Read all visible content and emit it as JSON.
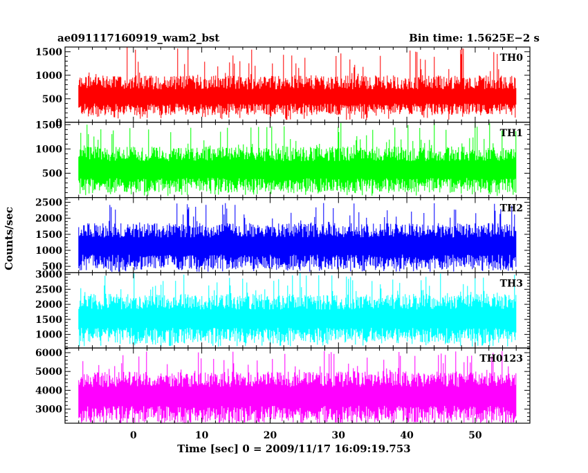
{
  "header": {
    "left_title": "ae091117160919_wam2_bst",
    "right_title": "Bin time: 1.5625E−2 s"
  },
  "axes": {
    "xlabel": "Time [sec] 0 = 2009/11/17 16:09:19.753",
    "ylabel": "Counts/sec"
  },
  "chart_data": {
    "type": "line",
    "x_range": [
      -8,
      56
    ],
    "xlim": [
      -10,
      58
    ],
    "x_ticks": [
      0,
      10,
      20,
      30,
      40,
      50
    ],
    "bin_time_s": 0.015625,
    "grid": false,
    "panels": [
      {
        "name": "TH0",
        "color": "#ff0000",
        "ylim": [
          0,
          1600
        ],
        "y_ticks": [
          500,
          1000,
          1500
        ],
        "y_tick_labels": [
          "500",
          "1000",
          "1500"
        ],
        "bottom_tick_label": "0",
        "trace": {
          "mean": 600,
          "low": 150,
          "high": 1600,
          "spread": 400
        }
      },
      {
        "name": "TH1",
        "color": "#00ff00",
        "ylim": [
          0,
          1550
        ],
        "y_ticks": [
          500,
          1000,
          1500
        ],
        "y_tick_labels": [
          "500",
          "1000",
          "1500"
        ],
        "trace": {
          "mean": 650,
          "low": 100,
          "high": 1550,
          "spread": 400
        }
      },
      {
        "name": "TH2",
        "color": "#0000ff",
        "ylim": [
          300,
          2650
        ],
        "y_ticks": [
          500,
          1000,
          1500,
          2000,
          2500
        ],
        "y_tick_labels": [
          "500",
          "1000",
          "1500",
          "2000",
          "2500"
        ],
        "trace": {
          "mean": 1250,
          "low": 400,
          "high": 2500,
          "spread": 600
        }
      },
      {
        "name": "TH3",
        "color": "#00ffff",
        "ylim": [
          550,
          3050
        ],
        "y_ticks": [
          1000,
          1500,
          2000,
          2500,
          3000
        ],
        "y_tick_labels": [
          "1000",
          "1500",
          "2000",
          "2500",
          "3000"
        ],
        "trace": {
          "mean": 1650,
          "low": 700,
          "high": 3050,
          "spread": 700
        }
      },
      {
        "name": "TH0123",
        "color": "#ff00ff",
        "ylim": [
          2250,
          6250
        ],
        "y_ticks": [
          3000,
          4000,
          5000,
          6000
        ],
        "y_tick_labels": [
          "3000",
          "4000",
          "5000",
          "6000"
        ],
        "trace": {
          "mean": 3900,
          "low": 2300,
          "high": 6100,
          "spread": 1100
        }
      }
    ]
  }
}
